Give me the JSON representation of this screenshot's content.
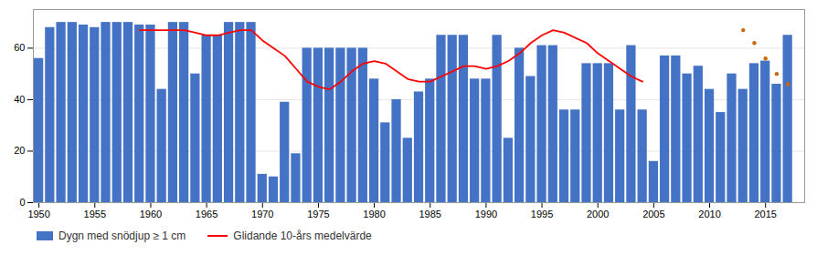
{
  "chart_data": {
    "type": "bar",
    "series": [
      {
        "name": "Dygn med snödjup ≥ 1 cm",
        "type": "bar",
        "color": "#4472C4",
        "x": [
          1950,
          1951,
          1952,
          1953,
          1954,
          1955,
          1956,
          1957,
          1958,
          1959,
          1960,
          1961,
          1962,
          1963,
          1964,
          1965,
          1966,
          1967,
          1968,
          1969,
          1970,
          1971,
          1972,
          1973,
          1974,
          1975,
          1976,
          1977,
          1978,
          1979,
          1980,
          1981,
          1982,
          1983,
          1984,
          1985,
          1986,
          1987,
          1988,
          1989,
          1990,
          1991,
          1992,
          1993,
          1994,
          1995,
          1996,
          1997,
          1998,
          1999,
          2000,
          2001,
          2002,
          2003,
          2004,
          2005,
          2006,
          2007,
          2008,
          2009,
          2010,
          2011,
          2012,
          2013,
          2014,
          2015,
          2016,
          2017
        ],
        "values": [
          56,
          68,
          70,
          70,
          69,
          68,
          70,
          70,
          70,
          69,
          69,
          44,
          70,
          70,
          50,
          65,
          65,
          70,
          70,
          70,
          11,
          10,
          39,
          19,
          60,
          60,
          60,
          60,
          60,
          60,
          48,
          31,
          40,
          25,
          43,
          48,
          65,
          65,
          65,
          48,
          48,
          65,
          25,
          60,
          49,
          61,
          61,
          36,
          36,
          54,
          54,
          54,
          36,
          61,
          36,
          16,
          57,
          57,
          50,
          53,
          44,
          35,
          50,
          44,
          54,
          55,
          46,
          65
        ]
      },
      {
        "name": "Glidande 10-års medelvärde",
        "type": "line",
        "color": "#FF0000",
        "line_style": "solid",
        "x": [
          1959,
          1960,
          1961,
          1962,
          1963,
          1964,
          1965,
          1966,
          1967,
          1968,
          1969,
          1970,
          1971,
          1972,
          1973,
          1974,
          1975,
          1976,
          1977,
          1978,
          1979,
          1980,
          1981,
          1982,
          1983,
          1984,
          1985,
          1986,
          1987,
          1988,
          1989,
          1990,
          1991,
          1992,
          1993,
          1994,
          1995,
          1996,
          1997,
          1998,
          1999,
          2000,
          2001,
          2002,
          2003,
          2004
        ],
        "values": [
          67,
          67,
          67,
          67,
          67,
          66,
          65,
          65,
          66,
          67,
          67,
          63,
          60,
          57,
          52,
          47,
          45,
          44,
          47,
          51,
          54,
          55,
          54,
          51,
          48,
          47,
          47,
          49,
          51,
          53,
          53,
          52,
          53,
          55,
          58,
          62,
          65,
          67,
          66,
          64,
          62,
          58,
          55,
          52,
          49,
          47
        ]
      },
      {
        "type": "scatter",
        "color": "#CC6600",
        "marker": "circle",
        "x": [
          2013,
          2014,
          2015,
          2016,
          2017
        ],
        "values": [
          67,
          62,
          56,
          50,
          46
        ]
      }
    ],
    "xlim": [
      1949.5,
      2018.5
    ],
    "xticks": [
      1950,
      1955,
      1960,
      1965,
      1970,
      1975,
      1980,
      1985,
      1990,
      1995,
      2000,
      2005,
      2010,
      2015
    ],
    "ylim": [
      0,
      75
    ],
    "yticks": [
      0,
      20,
      40,
      60
    ],
    "grid": true,
    "legend": "bottom"
  }
}
